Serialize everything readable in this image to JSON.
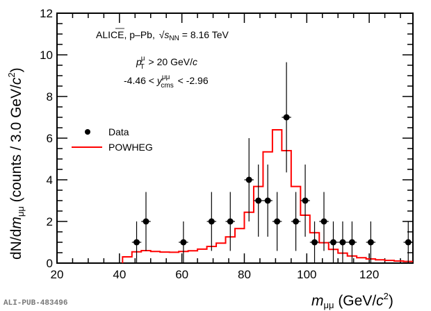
{
  "chart_data": {
    "type": "bar",
    "title": "",
    "xlabel": {
      "main": "m",
      "sub": "μμ",
      "units_pre": " (GeV/",
      "units_c": "c",
      "units_sup": "2",
      "units_post": ")"
    },
    "ylabel": {
      "pre": "dN/d",
      "m": "m",
      "sub": "μμ",
      "mid": " (counts / 3.0 GeV/",
      "c": "c",
      "sup": "2",
      "post": ")"
    },
    "xlim": [
      20,
      134
    ],
    "ylim": [
      0,
      12
    ],
    "x_major_ticks": [
      20,
      40,
      60,
      80,
      100,
      120
    ],
    "x_minor_step": 5,
    "y_major_ticks": [
      0,
      2,
      4,
      6,
      8,
      10,
      12
    ],
    "y_minor_step": 0.5,
    "annotations": {
      "line1": {
        "prefix": "ALICE, p–Pb, ",
        "sqrt_s": "s",
        "sub": "NN",
        "suffix": " = 8.16 TeV"
      },
      "line2": {
        "p": "p",
        "sup": "μ",
        "sub": "T",
        "suffix": " > 20 GeV/",
        "c": "c"
      },
      "line3": {
        "prefix": "-4.46 < ",
        "y": "y",
        "sup": "μμ",
        "sub": "cms",
        "suffix": " < -2.96"
      }
    },
    "legend": {
      "position": "left-middle",
      "entries": [
        {
          "label": "Data",
          "marker": "filled-circle",
          "color": "#000000"
        },
        {
          "label": "POWHEG",
          "marker": "line",
          "color": "#ff0000"
        }
      ]
    },
    "series": [
      {
        "name": "Data",
        "type": "scatter-errorbar",
        "color": "#000000",
        "bin_width": 3,
        "x": [
          45.5,
          48.5,
          60.5,
          69.5,
          75.5,
          81.5,
          84.5,
          87.5,
          90.5,
          93.5,
          96.5,
          99.5,
          102.5,
          105.5,
          108.5,
          111.5,
          114.5,
          120.5,
          132.5
        ],
        "y": [
          1,
          2,
          1,
          2,
          2,
          4,
          3,
          3,
          2,
          7,
          2,
          3,
          1,
          2,
          1,
          1,
          1,
          1,
          1
        ],
        "yerr": "sqrt(N)"
      },
      {
        "name": "POWHEG",
        "type": "step-histogram",
        "color": "#ff0000",
        "bin_edges": [
          41,
          44,
          47,
          50,
          53,
          56,
          59,
          62,
          65,
          68,
          71,
          74,
          77,
          80,
          83,
          86,
          89,
          92,
          95,
          98,
          101,
          104,
          107,
          110,
          113,
          116,
          119,
          122,
          125,
          128,
          131,
          134
        ],
        "values": [
          0.3,
          0.54,
          0.6,
          0.56,
          0.53,
          0.52,
          0.56,
          0.59,
          0.67,
          0.8,
          0.96,
          1.26,
          1.66,
          2.44,
          3.68,
          5.34,
          6.4,
          5.4,
          3.68,
          2.3,
          1.46,
          0.98,
          0.66,
          0.48,
          0.34,
          0.26,
          0.2,
          0.16,
          0.13,
          0.1,
          0.08
        ]
      }
    ]
  },
  "watermark": "ALI-PUB-483496"
}
